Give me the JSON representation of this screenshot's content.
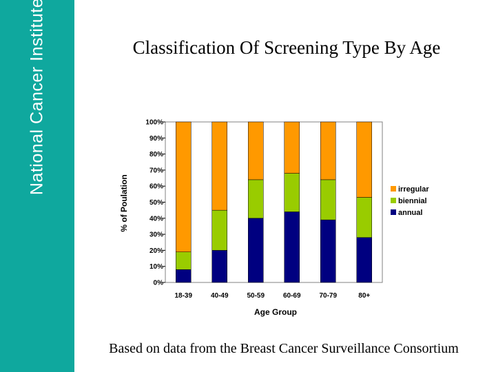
{
  "sidebar": {
    "brand": "National Cancer Institute"
  },
  "slide": {
    "title": "Classification Of Screening Type By Age",
    "footer": "Based on data from the Breast Cancer Surveillance Consortium"
  },
  "chart_data": {
    "type": "bar",
    "stacked": true,
    "categories": [
      "18-39",
      "40-49",
      "50-59",
      "60-69",
      "70-79",
      "80+"
    ],
    "series": [
      {
        "name": "annual",
        "color": "#000080",
        "values": [
          8,
          20,
          40,
          44,
          39,
          28
        ]
      },
      {
        "name": "biennial",
        "color": "#99cc00",
        "values": [
          11,
          25,
          24,
          24,
          25,
          25
        ]
      },
      {
        "name": "irregular",
        "color": "#ff9900",
        "values": [
          81,
          55,
          36,
          32,
          36,
          47
        ]
      }
    ],
    "legend_order": [
      "irregular",
      "biennial",
      "annual"
    ],
    "ytick_labels": [
      "0%",
      "10%",
      "20%",
      "30%",
      "40%",
      "50%",
      "60%",
      "70%",
      "80%",
      "90%",
      "100%"
    ],
    "ylim": [
      0,
      100
    ],
    "xlabel": "Age Group",
    "ylabel": "% of Poulation",
    "legend_position": "right"
  }
}
